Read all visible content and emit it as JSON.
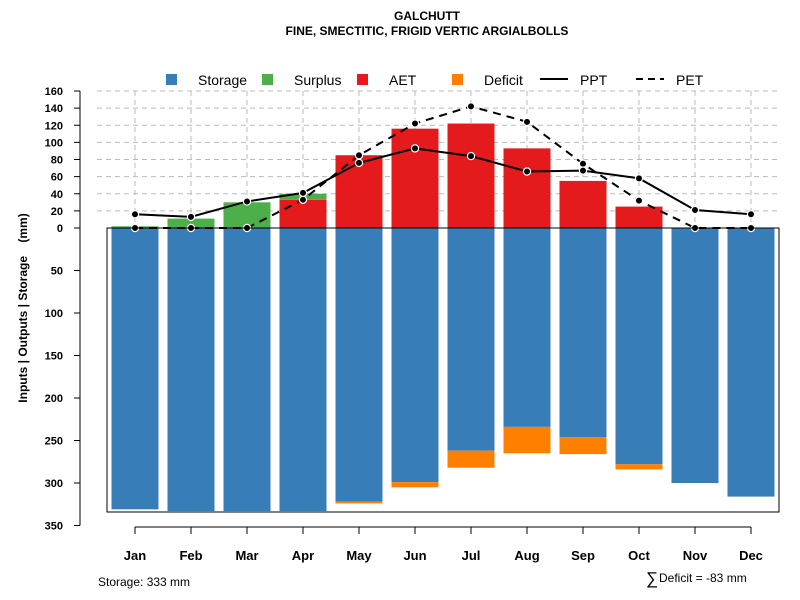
{
  "chart_data": {
    "type": "bar",
    "title": "GALCHUTT",
    "subtitle": "FINE, SMECTITIC, FRIGID VERTIC ARGIALBOLLS",
    "ylabel": "Inputs | Outputs | Storage    (mm)",
    "ylim": [
      -350,
      160
    ],
    "yticks_up": [
      "160",
      "140",
      "120",
      "100",
      "80",
      "60",
      "40",
      "20",
      "0"
    ],
    "yticks_down": [
      "50",
      "100",
      "150",
      "200",
      "250",
      "300",
      "350"
    ],
    "categories": [
      "Jan",
      "Feb",
      "Mar",
      "Apr",
      "May",
      "Jun",
      "Jul",
      "Aug",
      "Sep",
      "Oct",
      "Nov",
      "Dec"
    ],
    "series": [
      {
        "name": "Storage",
        "color": "#377EB8",
        "values": [
          331,
          333,
          333,
          333,
          322,
          299,
          262,
          234,
          246,
          278,
          300,
          316
        ]
      },
      {
        "name": "Surplus",
        "color": "#4DAF4A",
        "values": [
          2,
          11,
          30,
          7,
          0,
          0,
          0,
          0,
          0,
          0,
          0,
          0
        ]
      },
      {
        "name": "AET",
        "color": "#E41A1C",
        "values": [
          0,
          0,
          0,
          33,
          85,
          116,
          122,
          93,
          55,
          25,
          0,
          0
        ]
      },
      {
        "name": "Deficit",
        "color": "#FF7F00",
        "values": [
          0,
          0,
          0,
          0,
          2,
          6,
          20,
          31,
          20,
          6,
          0,
          0
        ]
      },
      {
        "name": "PPT",
        "color": "#000000",
        "values": [
          16,
          13,
          31,
          41,
          76,
          93,
          84,
          66,
          67,
          58,
          21,
          16
        ]
      },
      {
        "name": "PET",
        "color": "#000000",
        "values": [
          0,
          0,
          0,
          33,
          85,
          122,
          142,
          124,
          75,
          32,
          0,
          0
        ]
      }
    ],
    "grid": true,
    "legend": "top"
  },
  "footer": {
    "storage": "Storage: 333 mm",
    "deficit_symbol": "∑",
    "deficit": "Deficit = -83 mm"
  }
}
